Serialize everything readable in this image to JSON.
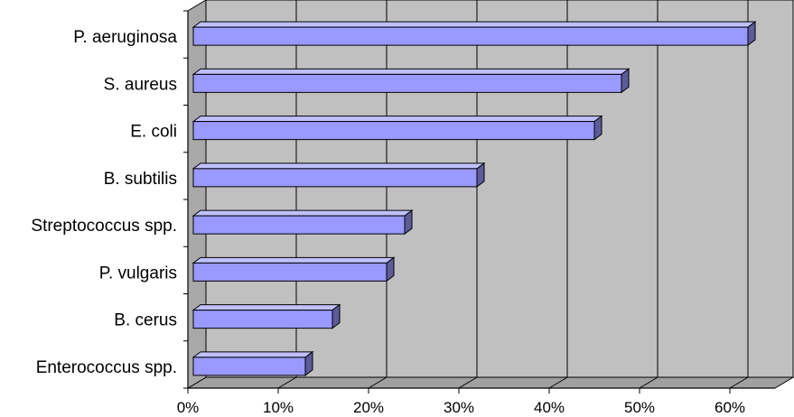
{
  "chart_data": {
    "type": "bar",
    "orientation": "horizontal",
    "style": "3d",
    "categories": [
      "P. aeruginosa",
      "S. aureus",
      "E. coli",
      "B. subtilis",
      "Streptococcus spp.",
      "P. vulgaris",
      "B. cerus",
      "Enterococcus spp."
    ],
    "values": [
      62,
      48,
      45,
      32,
      24,
      22,
      16,
      13
    ],
    "x_ticks": [
      "0%",
      "10%",
      "20%",
      "30%",
      "40%",
      "50%",
      "60%"
    ],
    "xlim": [
      0,
      65
    ],
    "title": "",
    "xlabel": "",
    "ylabel": "",
    "grid": "vertical",
    "legend": "none",
    "colors": {
      "bar_front": "#9999ff",
      "bar_top": "#c0c0ff",
      "bar_side": "#5c5c99",
      "wall": "#c0c0c0",
      "floor": "#a0a0a0",
      "gridline": "#000000"
    }
  }
}
